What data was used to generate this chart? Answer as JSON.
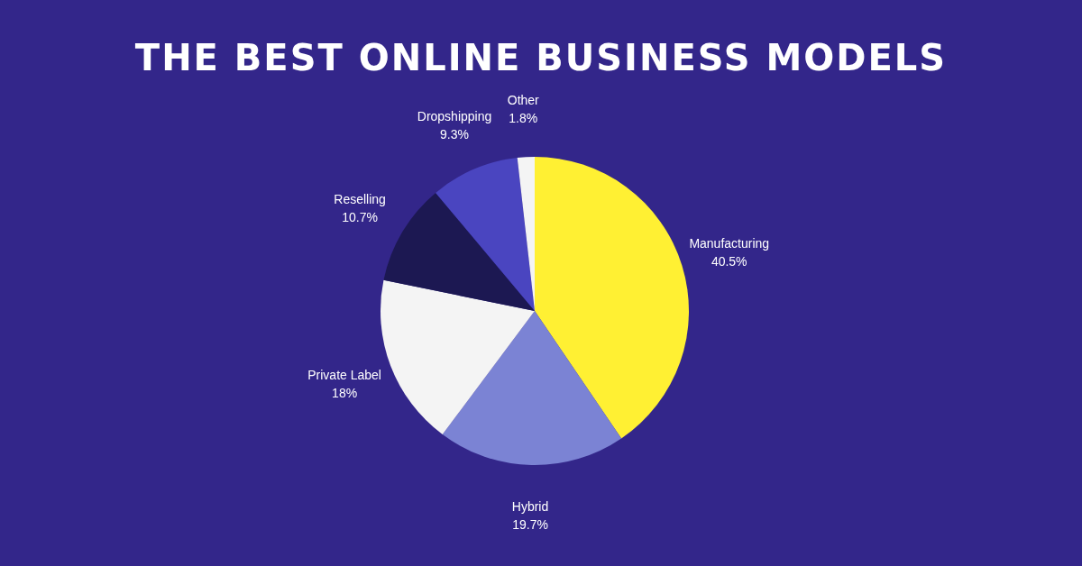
{
  "chart_data": {
    "type": "pie",
    "title": "THE BEST ONLINE BUSINESS MODELS",
    "categories": [
      "Manufacturing",
      "Hybrid",
      "Private Label",
      "Reselling",
      "Dropshipping",
      "Other"
    ],
    "values": [
      40.5,
      19.7,
      18,
      10.7,
      9.3,
      1.8
    ],
    "value_labels": [
      "40.5%",
      "19.7%",
      "18%",
      "10.7%",
      "9.3%",
      "1.8%"
    ],
    "colors": [
      "#fff033",
      "#7b83d4",
      "#f4f4f4",
      "#1c1852",
      "#4a45c0",
      "#f4f4f4"
    ]
  }
}
